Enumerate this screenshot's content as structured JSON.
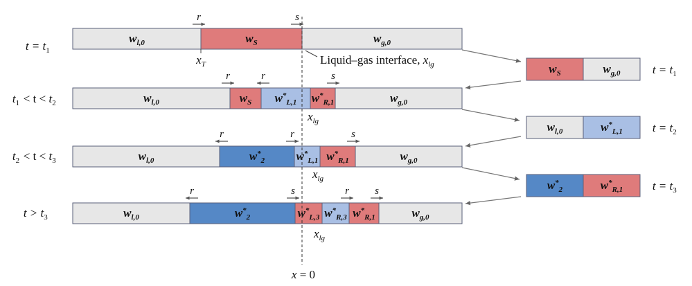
{
  "rows": [
    {
      "time_label": "t = t1",
      "segments": [
        {
          "label": "w_l,0",
          "color": "#e7e7e7"
        },
        {
          "label": "w_S",
          "color": "#df7b7b"
        },
        {
          "label": "w_g,0",
          "color": "#e7e7e7"
        }
      ]
    },
    {
      "time_label": "t1 < t < t2",
      "segments": [
        {
          "label": "w_l,0",
          "color": "#e7e7e7"
        },
        {
          "label": "w_S",
          "color": "#df7b7b"
        },
        {
          "label": "w*_L,1",
          "color": "#a9bfe4"
        },
        {
          "label": "w*_R,1",
          "color": "#df7b7b"
        },
        {
          "label": "w_g,0",
          "color": "#e7e7e7"
        }
      ]
    },
    {
      "time_label": "t2 < t < t3",
      "segments": [
        {
          "label": "w_l,0",
          "color": "#e7e7e7"
        },
        {
          "label": "w*_2",
          "color": "#5588c6"
        },
        {
          "label": "w*_L,1",
          "color": "#a9bfe4"
        },
        {
          "label": "w*_R,1",
          "color": "#df7b7b"
        },
        {
          "label": "w_g,0",
          "color": "#e7e7e7"
        }
      ]
    },
    {
      "time_label": "t > t3",
      "segments": [
        {
          "label": "w_l,0",
          "color": "#e7e7e7"
        },
        {
          "label": "w*_2",
          "color": "#5588c6"
        },
        {
          "label": "w*_L,3",
          "color": "#df7b7b"
        },
        {
          "label": "w*_R,3",
          "color": "#a9bfe4"
        },
        {
          "label": "w*_R,1",
          "color": "#df7b7b"
        },
        {
          "label": "w_g,0",
          "color": "#e7e7e7"
        }
      ]
    }
  ],
  "riemann": [
    {
      "time_label": "t = t1",
      "left": {
        "label": "w_S",
        "color": "#df7b7b"
      },
      "right": {
        "label": "w_g,0",
        "color": "#e7e7e7"
      }
    },
    {
      "time_label": "t = t2",
      "left": {
        "label": "w_l,0",
        "color": "#e7e7e7"
      },
      "right": {
        "label": "w*_L,1",
        "color": "#a9bfe4"
      }
    },
    {
      "time_label": "t = t3",
      "left": {
        "label": "w*_2",
        "color": "#5588c6"
      },
      "right": {
        "label": "w*_R,1",
        "color": "#df7b7b"
      }
    }
  ],
  "wave_labels": {
    "r": "r",
    "s": "s"
  },
  "annotations": {
    "x_T": "x_T",
    "interface": "Liquid–gas interface, x_lg",
    "x_lg": "x_lg",
    "x0": "x = 0"
  },
  "colors": {
    "gray": "#e7e7e7",
    "red": "#df7b7b",
    "light_blue": "#a9bfe4",
    "blue": "#5588c6",
    "border": "#5a5f7a",
    "arrow": "#777777"
  }
}
